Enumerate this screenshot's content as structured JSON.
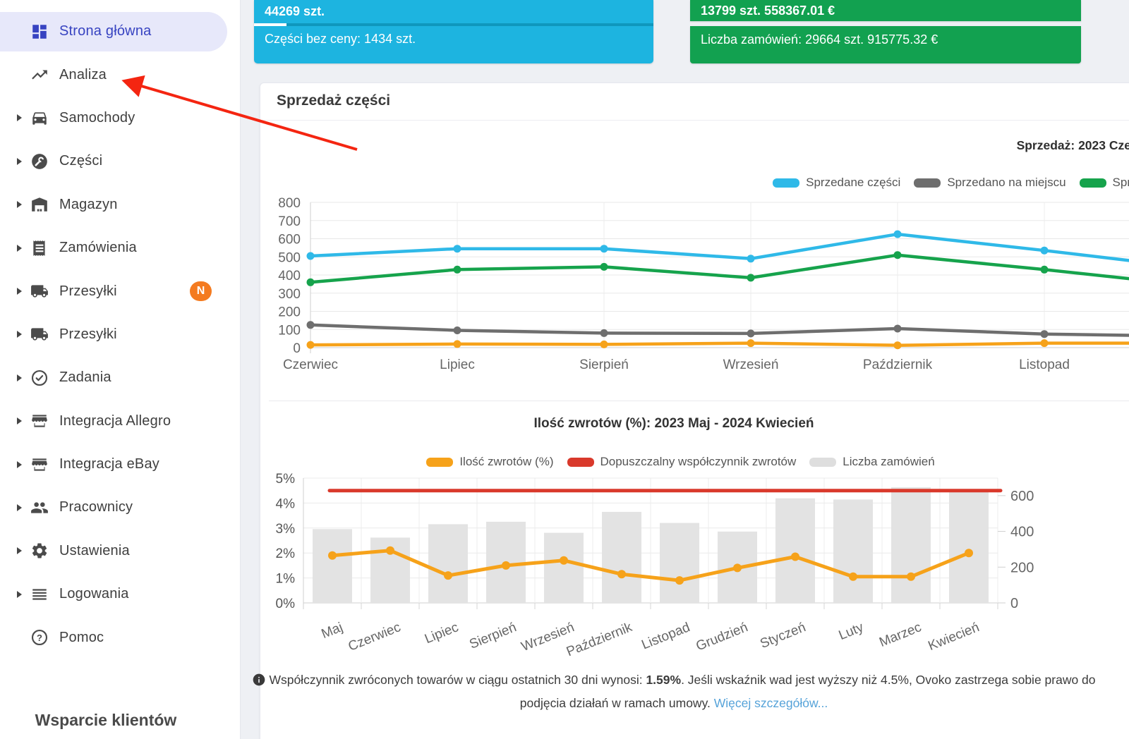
{
  "colors": {
    "accent_blue": "#3743c1",
    "active_item_bg": "#e7e8fa",
    "cyan_card": "#1db4e0",
    "cyan_card_divider": "#0f97bd",
    "green_card": "#12a150",
    "badge_orange": "#f47b20",
    "arrow_red": "#f42511",
    "link_blue": "#56a3d9"
  },
  "sidebar": {
    "items": [
      {
        "label": "Strona główna",
        "icon": "dashboard-icon",
        "active": true,
        "expandable": false
      },
      {
        "label": "Analiza",
        "icon": "trending-up-icon",
        "expandable": false
      },
      {
        "label": "Samochody",
        "icon": "car-icon",
        "expandable": true
      },
      {
        "label": "Części",
        "icon": "wrench-icon",
        "expandable": true
      },
      {
        "label": "Magazyn",
        "icon": "warehouse-icon",
        "expandable": true
      },
      {
        "label": "Zamówienia",
        "icon": "receipt-icon",
        "expandable": true
      },
      {
        "label": "Przesyłki",
        "icon": "truck-icon",
        "expandable": true,
        "badge": "N"
      },
      {
        "label": "Przesyłki",
        "icon": "truck-icon",
        "expandable": true
      },
      {
        "label": "Zadania",
        "icon": "check-circle-icon",
        "expandable": true
      },
      {
        "label": "Integracja Allegro",
        "icon": "store-icon",
        "expandable": true
      },
      {
        "label": "Integracja eBay",
        "icon": "store-icon",
        "expandable": true
      },
      {
        "label": "Pracownicy",
        "icon": "people-icon",
        "expandable": true
      },
      {
        "label": "Ustawienia",
        "icon": "gear-icon",
        "expandable": true
      },
      {
        "label": "Logowania",
        "icon": "list-icon",
        "expandable": true
      },
      {
        "label": "Pomoc",
        "icon": "help-icon",
        "expandable": false
      }
    ],
    "footer_heading": "Wsparcie klientów"
  },
  "summary_cards": {
    "parts": {
      "top": "44269 szt.",
      "bottom": "Części bez ceny: 1434 szt."
    },
    "orders": {
      "top": "13799 szt. 558367.01 €",
      "bottom": "Liczba zamówień: 29664 szt. 915775.32 €"
    }
  },
  "sales_card": {
    "title": "Sprzedaż części"
  },
  "chart_data": [
    {
      "type": "line",
      "title": "Sprzedaż: 2023 Cze",
      "categories": [
        "Czerwiec",
        "Lipiec",
        "Sierpień",
        "Wrzesień",
        "Październik",
        "Listopad"
      ],
      "ylim": [
        0,
        800
      ],
      "yticks": [
        0,
        100,
        200,
        300,
        400,
        500,
        600,
        700,
        800
      ],
      "grid": true,
      "legend_position": "top-right",
      "legend": [
        {
          "label": "Sprzedane części",
          "color": "#2fb9e8"
        },
        {
          "label": "Sprzedano na miejscu",
          "color": "#6e6e6e"
        },
        {
          "label": "Spr",
          "color": "#16a34c"
        }
      ],
      "series": [
        {
          "name": "Sprzedano na miejscu",
          "color": "#6e6e6e",
          "values": [
            125,
            95,
            80,
            78,
            105,
            75
          ],
          "edge_value": 68
        },
        {
          "name": "Spr",
          "color": "#16a34c",
          "values": [
            360,
            430,
            445,
            385,
            510,
            430
          ],
          "edge_value": 380
        },
        {
          "name": "Sprzedane części",
          "color": "#2fb9e8",
          "values": [
            505,
            545,
            545,
            490,
            625,
            535
          ],
          "edge_value": 480
        },
        {
          "name": "",
          "color": "#f6a21a",
          "values": [
            15,
            20,
            18,
            25,
            13,
            25
          ],
          "edge_value": 25
        }
      ]
    },
    {
      "type": "bar+line",
      "title": "Ilość zwrotów (%): 2023 Maj - 2024 Kwiecień",
      "categories": [
        "Maj",
        "Czerwiec",
        "Lipiec",
        "Sierpień",
        "Wrzesień",
        "Październik",
        "Listopad",
        "Grudzień",
        "Styczeń",
        "Luty",
        "Marzec",
        "Kwiecień"
      ],
      "left_axis": {
        "ticks": [
          "0%",
          "1%",
          "2%",
          "3%",
          "4%",
          "5%"
        ],
        "range": [
          0,
          5
        ]
      },
      "right_axis": {
        "ticks": [
          0,
          200,
          400,
          600
        ],
        "range": [
          0,
          698
        ]
      },
      "grid": true,
      "legend": [
        {
          "label": "Ilość zwrotów (%)",
          "color": "#f6a21a"
        },
        {
          "label": "Dopuszczalny współczynnik zwrotów",
          "color": "#d9392b"
        },
        {
          "label": "Liczba zamówień",
          "color": "#dedede"
        }
      ],
      "series": [
        {
          "name": "Liczba zamówień",
          "type": "bar",
          "axis": "right",
          "color": "#e3e3e3",
          "values": [
            413,
            365,
            440,
            454,
            392,
            509,
            447,
            399,
            585,
            578,
            647,
            626
          ]
        },
        {
          "name": "Dopuszczalny współczynnik zwrotów",
          "type": "threshold-line",
          "axis": "left",
          "color": "#d9392b",
          "value": 4.5
        },
        {
          "name": "Ilość zwrotów (%)",
          "type": "line",
          "axis": "left",
          "color": "#f6a21a",
          "values": [
            1.9,
            2.1,
            1.1,
            1.5,
            1.7,
            1.15,
            0.9,
            1.4,
            1.85,
            1.05,
            1.05,
            2.0
          ]
        }
      ]
    }
  ],
  "footnote": {
    "icon": "info-icon",
    "text_prefix": "Współczynnik zwróconych towarów w ciągu ostatnich 30 dni wynosi: ",
    "highlight": "1.59%",
    "text_middle": ". Jeśli wskaźnik wad jest wyższy niż 4.5%, Ovoko zastrzega sobie prawo do podjęcia działań w ramach umowy. ",
    "link": "Więcej szczegółów..."
  },
  "annotation": {
    "type": "arrow",
    "points_to": "Analiza",
    "color": "#f42511"
  }
}
